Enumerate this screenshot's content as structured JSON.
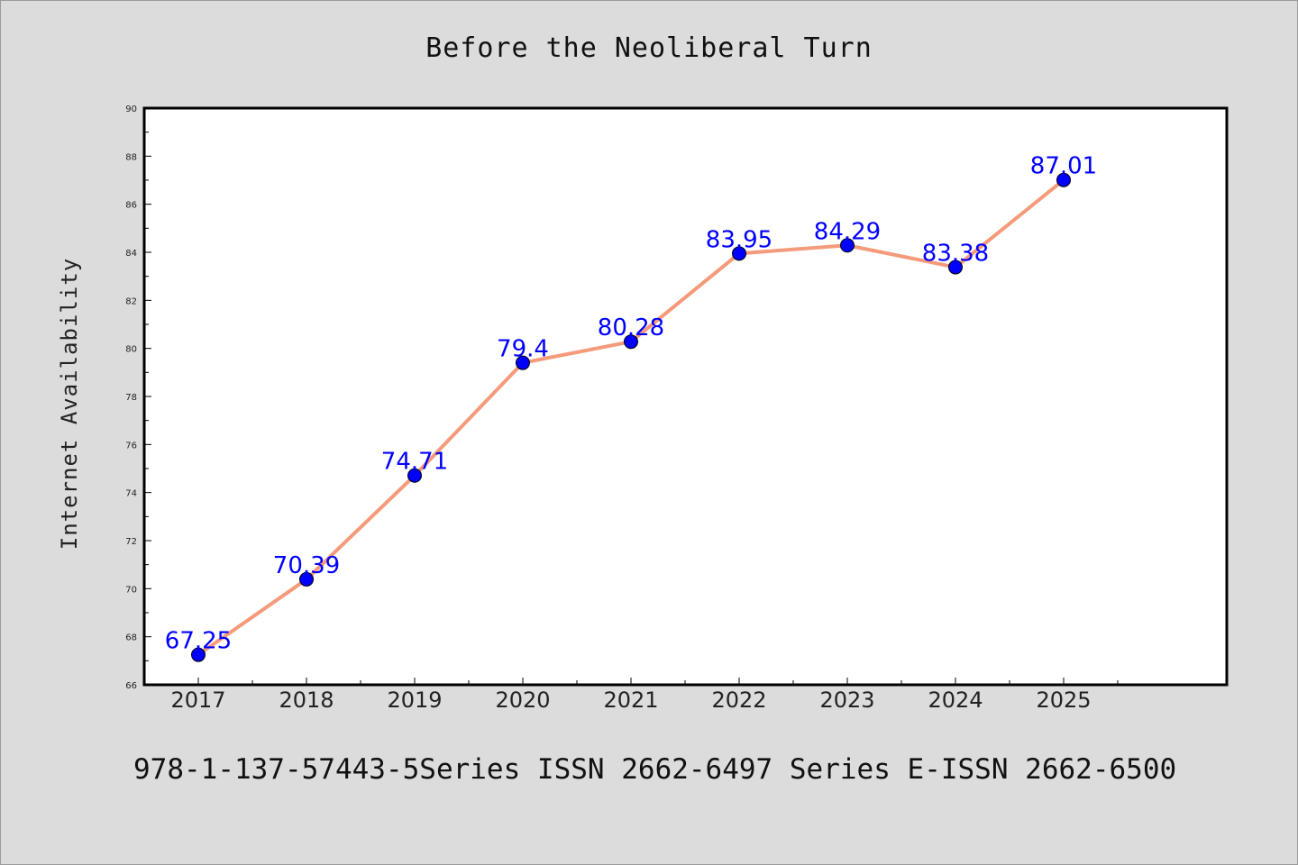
{
  "chart_data": {
    "type": "line",
    "title": "Before the Neoliberal Turn",
    "xlabel": "",
    "ylabel": "Internet Availability",
    "categories": [
      "2017",
      "2018",
      "2019",
      "2020",
      "2021",
      "2022",
      "2023",
      "2024",
      "2025"
    ],
    "series": [
      {
        "values": [
          67.25,
          70.39,
          74.71,
          79.4,
          80.28,
          83.95,
          84.29,
          83.38,
          87.01
        ],
        "labels": [
          "67.25",
          "70.39",
          "74.71",
          "79.4",
          "80.28",
          "83.95",
          "84.29",
          "83.38",
          "87.01"
        ]
      }
    ],
    "ylim": [
      66,
      90
    ],
    "yticks": [
      "66",
      "68",
      "70",
      "72",
      "74",
      "76",
      "78",
      "80",
      "82",
      "84",
      "86",
      "88",
      "90"
    ],
    "x_range_start": 2016.5,
    "grid": false,
    "legend": "none",
    "colors": {
      "line": "#f59a7a",
      "marker": "#0000ff",
      "data_label": "#0000ff",
      "plot_background": "#ffffff",
      "page_background": "#dcdcdc"
    }
  },
  "footer": {
    "text": "978-1-137-57443-5Series ISSN 2662-6497 Series E-ISSN 2662-6500"
  }
}
